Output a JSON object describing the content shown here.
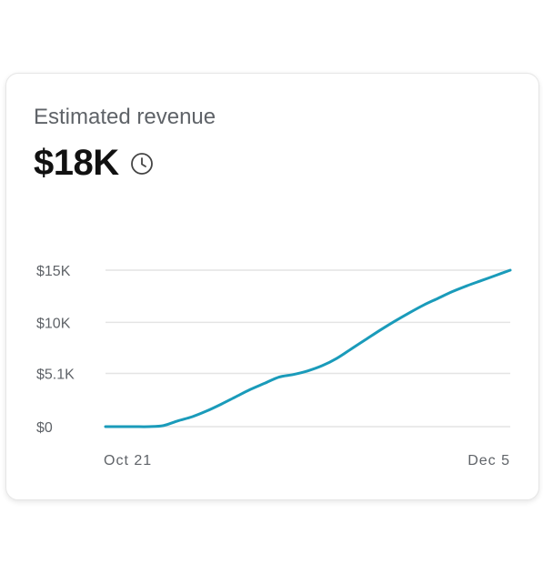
{
  "card": {
    "title": "Estimated revenue",
    "value": "$18K",
    "value_icon": "clock-icon"
  },
  "chart_data": {
    "type": "line",
    "title": "",
    "xlabel": "",
    "ylabel": "",
    "x_tick_labels": [
      "Oct 21",
      "Dec 5"
    ],
    "y_tick_labels": [
      "$0",
      "$5.1K",
      "$10K",
      "$15K"
    ],
    "y_ticks": [
      0,
      5100,
      10000,
      15000
    ],
    "ylim": [
      0,
      15000
    ],
    "grid": true,
    "series": [
      {
        "color": "#1a9bba",
        "values": [
          0,
          0,
          0,
          0,
          100,
          550,
          950,
          1500,
          2150,
          2850,
          3550,
          4150,
          4750,
          5000,
          5350,
          5850,
          6550,
          7450,
          8350,
          9250,
          10100,
          10900,
          11650,
          12300,
          12950,
          13500,
          14000,
          14500,
          15000
        ]
      }
    ]
  }
}
